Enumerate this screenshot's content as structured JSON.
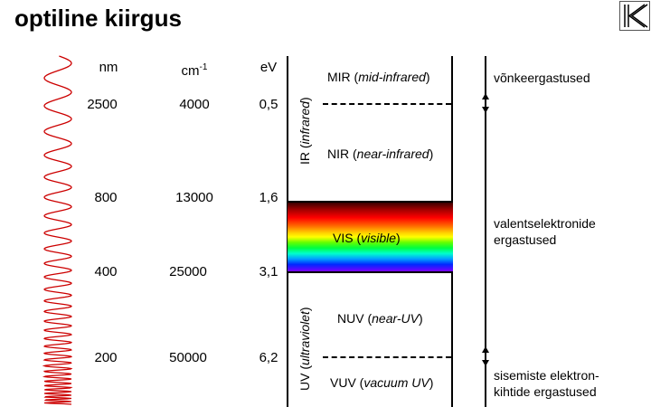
{
  "title": "optiline kiirgus",
  "columns": {
    "nm": "nm",
    "wavenumber_base": "cm",
    "wavenumber_exp": "-1",
    "ev": "eV"
  },
  "rows": [
    {
      "nm": "2500",
      "wavenumber": "4000",
      "ev": "0,5"
    },
    {
      "nm": "800",
      "wavenumber": "13000",
      "ev": "1,6"
    },
    {
      "nm": "400",
      "wavenumber": "25000",
      "ev": "3,1"
    },
    {
      "nm": "200",
      "wavenumber": "50000",
      "ev": "6,2"
    }
  ],
  "vertical_labels": {
    "ir_main": "IR (",
    "ir_italic": "infrared",
    "ir_end": ")",
    "uv_main": "UV (",
    "uv_italic": "ultraviolet",
    "uv_end": ")"
  },
  "regions": {
    "mir_main": "MIR (",
    "mir_italic": "mid-infrared",
    "mir_end": ")",
    "nir_main": "NIR (",
    "nir_italic": "near-infrared",
    "nir_end": ")",
    "vis_main": "VIS (",
    "vis_italic": "visible",
    "vis_end": ")",
    "nuv_main": "NUV (",
    "nuv_italic": "near-UV",
    "nuv_end": ")",
    "vuv_main": "VUV (",
    "vuv_italic": "vacuum UV",
    "vuv_end": ")"
  },
  "excitations": {
    "vibrational": "võnkeergastused",
    "valence": "valentselektronide ergastused",
    "inner": "sisemiste elektron-kihtide ergastused"
  },
  "colors": {
    "wave": "#cc0000",
    "spectrum_top": "#3a0000",
    "spectrum_bottom": "#7a00ff"
  },
  "icons": {
    "nav": "first-slide-icon",
    "wave": "sine-wave-icon"
  }
}
